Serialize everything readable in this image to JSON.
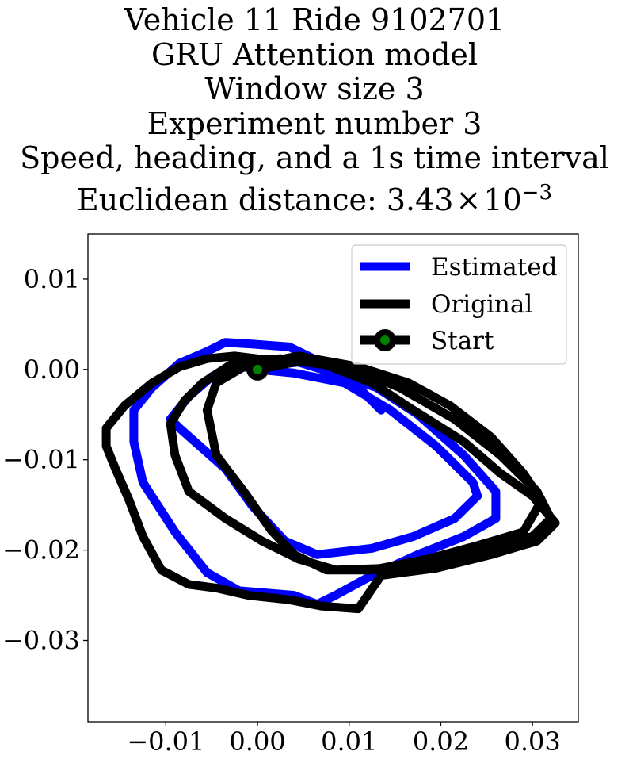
{
  "title": {
    "lines": [
      "Vehicle 11 Ride 9102701",
      "GRU Attention model",
      "Window size 3",
      "Experiment number 3",
      "Speed, heading, and a 1s time interval"
    ],
    "distance_prefix": "Euclidean distance: ",
    "distance_mantissa": "3.43",
    "distance_times": "×",
    "distance_base": "10",
    "distance_exponent": "−3"
  },
  "chart_data": {
    "type": "line",
    "xlim": [
      -0.0185,
      0.035
    ],
    "ylim": [
      -0.039,
      0.015
    ],
    "xticks": [
      {
        "value": -0.01,
        "label": "−0.01"
      },
      {
        "value": 0.0,
        "label": "0.00"
      },
      {
        "value": 0.01,
        "label": "0.01"
      },
      {
        "value": 0.02,
        "label": "0.02"
      },
      {
        "value": 0.03,
        "label": "0.03"
      }
    ],
    "yticks": [
      {
        "value": 0.01,
        "label": "0.01"
      },
      {
        "value": 0.0,
        "label": "0.00"
      },
      {
        "value": -0.01,
        "label": "−0.01"
      },
      {
        "value": -0.02,
        "label": "−0.02"
      },
      {
        "value": -0.03,
        "label": "−0.03"
      }
    ],
    "grid": false,
    "legend_position": "top-right",
    "series": [
      {
        "name": "Estimated",
        "color": "#0000ff",
        "points": [
          [
            0.0,
            0.0
          ],
          [
            0.004,
            -0.0004
          ],
          [
            0.0095,
            -0.0015
          ],
          [
            0.0145,
            -0.0045
          ],
          [
            0.0195,
            -0.0085
          ],
          [
            0.0235,
            -0.0125
          ],
          [
            0.024,
            -0.014
          ],
          [
            0.0215,
            -0.0165
          ],
          [
            0.017,
            -0.0185
          ],
          [
            0.0125,
            -0.0198
          ],
          [
            0.0065,
            -0.0205
          ],
          [
            0.003,
            -0.019
          ],
          [
            -0.0005,
            -0.0152
          ],
          [
            -0.0035,
            -0.011
          ],
          [
            -0.0085,
            -0.0065
          ],
          [
            -0.0095,
            -0.0055
          ],
          [
            -0.0075,
            -0.003
          ],
          [
            -0.005,
            -0.0008
          ],
          [
            -0.002,
            0.0002
          ],
          [
            0.0045,
            0.0008
          ],
          [
            0.008,
            -0.0003
          ],
          [
            0.013,
            -0.002
          ],
          [
            0.0175,
            -0.005
          ],
          [
            0.0225,
            -0.0095
          ],
          [
            0.026,
            -0.0135
          ],
          [
            0.026,
            -0.0165
          ],
          [
            0.0225,
            -0.0185
          ],
          [
            0.0175,
            -0.0205
          ],
          [
            0.0125,
            -0.0228
          ],
          [
            0.0085,
            -0.025
          ],
          [
            0.0065,
            -0.026
          ],
          [
            0.004,
            -0.025
          ],
          [
            -0.002,
            -0.0245
          ],
          [
            -0.0055,
            -0.0225
          ],
          [
            -0.009,
            -0.018
          ],
          [
            -0.0125,
            -0.0125
          ],
          [
            -0.0135,
            -0.008
          ],
          [
            -0.0135,
            -0.0045
          ],
          [
            -0.0115,
            -0.002
          ],
          [
            -0.0085,
            0.0007
          ],
          [
            -0.0055,
            0.002
          ],
          [
            -0.0035,
            0.003
          ],
          [
            -0.0005,
            0.0028
          ],
          [
            0.0035,
            0.0025
          ],
          [
            0.0075,
            0.0005
          ],
          [
            0.0115,
            -0.0025
          ],
          [
            0.0135,
            -0.0045
          ]
        ]
      },
      {
        "name": "Original",
        "color": "#000000",
        "points": [
          [
            0.0,
            0.0
          ],
          [
            0.006,
            0.0012
          ],
          [
            0.011,
            0.0003
          ],
          [
            0.0165,
            -0.0015
          ],
          [
            0.021,
            -0.004
          ],
          [
            0.0255,
            -0.0075
          ],
          [
            0.029,
            -0.0115
          ],
          [
            0.031,
            -0.0145
          ],
          [
            0.029,
            -0.018
          ],
          [
            0.024,
            -0.0195
          ],
          [
            0.0185,
            -0.021
          ],
          [
            0.0125,
            -0.0222
          ],
          [
            0.0075,
            -0.0222
          ],
          [
            0.004,
            -0.0205
          ],
          [
            0.0015,
            -0.0178
          ],
          [
            -0.0015,
            -0.0135
          ],
          [
            -0.0045,
            -0.0095
          ],
          [
            -0.0055,
            -0.0045
          ],
          [
            -0.0045,
            -0.0015
          ],
          [
            -0.0015,
            0.0003
          ],
          [
            0.0045,
            0.0015
          ],
          [
            0.0095,
            0.0005
          ],
          [
            0.0155,
            -0.002
          ],
          [
            0.0215,
            -0.0055
          ],
          [
            0.0265,
            -0.0095
          ],
          [
            0.0305,
            -0.0135
          ],
          [
            0.032,
            -0.0165
          ],
          [
            0.03,
            -0.0185
          ],
          [
            0.026,
            -0.0195
          ],
          [
            0.02,
            -0.021
          ],
          [
            0.0145,
            -0.022
          ],
          [
            0.0085,
            -0.0222
          ],
          [
            0.0045,
            -0.021
          ],
          [
            0.0005,
            -0.019
          ],
          [
            -0.0035,
            -0.0165
          ],
          [
            -0.0075,
            -0.0135
          ],
          [
            -0.009,
            -0.0095
          ],
          [
            -0.0095,
            -0.006
          ],
          [
            -0.008,
            -0.0035
          ],
          [
            -0.006,
            -0.0015
          ],
          [
            -0.0025,
            0.0008
          ],
          [
            0.0025,
            0.0012
          ],
          [
            0.0075,
            0.0005
          ],
          [
            0.0125,
            -0.0015
          ],
          [
            0.017,
            -0.0045
          ],
          [
            0.0225,
            -0.008
          ],
          [
            0.0265,
            -0.0115
          ],
          [
            0.03,
            -0.014
          ],
          [
            0.0325,
            -0.017
          ],
          [
            0.0305,
            -0.019
          ],
          [
            0.0255,
            -0.0205
          ],
          [
            0.0195,
            -0.022
          ],
          [
            0.0135,
            -0.0228
          ],
          [
            0.011,
            -0.0265
          ],
          [
            0.007,
            -0.0262
          ],
          [
            0.0035,
            -0.0255
          ],
          [
            -0.001,
            -0.025
          ],
          [
            -0.0045,
            -0.0242
          ],
          [
            -0.0075,
            -0.0238
          ],
          [
            -0.0105,
            -0.0222
          ],
          [
            -0.0125,
            -0.0185
          ],
          [
            -0.014,
            -0.0145
          ],
          [
            -0.0155,
            -0.011
          ],
          [
            -0.0165,
            -0.0085
          ],
          [
            -0.0165,
            -0.0065
          ],
          [
            -0.0145,
            -0.004
          ],
          [
            -0.0115,
            -0.0015
          ],
          [
            -0.0085,
            0.0003
          ],
          [
            -0.0055,
            0.0012
          ],
          [
            -0.0025,
            0.0015
          ],
          [
            0.0015,
            0.001
          ]
        ]
      },
      {
        "name": "Start",
        "color": "#000000",
        "marker_face_color": "#008000",
        "points": [
          [
            0.0,
            0.0
          ]
        ]
      }
    ]
  }
}
